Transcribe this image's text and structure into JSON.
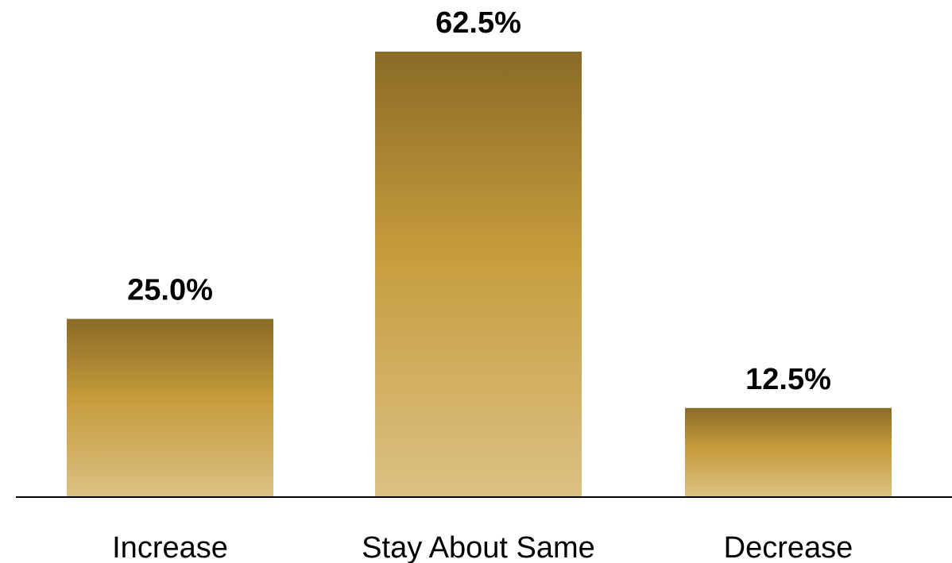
{
  "chart_data": {
    "type": "bar",
    "categories": [
      "Increase",
      "Stay About Same",
      "Decrease"
    ],
    "values": [
      25.0,
      62.5,
      12.5
    ],
    "data_labels": [
      "25.0%",
      "62.5%",
      "12.5%"
    ],
    "title": "",
    "xlabel": "",
    "ylabel": "",
    "ylim": [
      0,
      62.5
    ],
    "grid": false,
    "legend": "none",
    "colors": {
      "bar_top": "#8a6a26",
      "bar_middle": "#c69c3c",
      "bar_bottom": "#dcc184",
      "axis": "#000000"
    }
  }
}
